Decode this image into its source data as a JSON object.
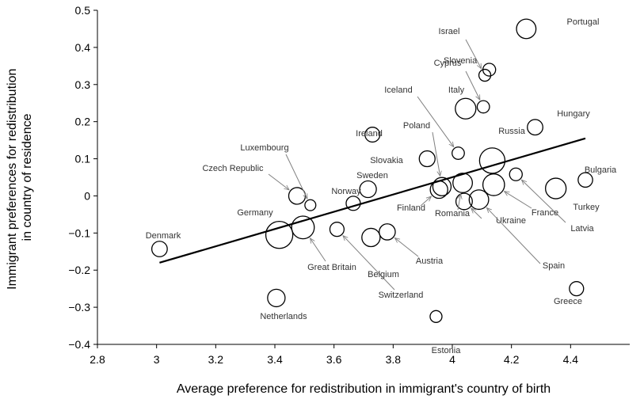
{
  "chart_data": {
    "type": "scatter",
    "title": "",
    "xlabel": "Average preference for redistribution in immigrant's country of birth",
    "ylabel": "Immigrant preferences for redistribution in country of residence",
    "ylabel_lines": [
      "Immigrant preferences for redistribution",
      "in country of residence"
    ],
    "xlim": [
      2.8,
      4.6
    ],
    "ylim": [
      -0.4,
      0.5
    ],
    "xticks": [
      "2.8",
      "3",
      "3.2",
      "3.4",
      "3.6",
      "3.8",
      "4",
      "4.2",
      "4.4"
    ],
    "yticks": [
      "−0.4",
      "−0.3",
      "−0.2",
      "−0.1",
      "0",
      "0.1",
      "0.2",
      "0.3",
      "0.4",
      "0.5"
    ],
    "grid": false,
    "legend": "none",
    "point_size_encodes": "relative sample size (bubble area)",
    "fit_line": {
      "x": [
        3.01,
        4.45
      ],
      "y": [
        -0.18,
        0.155
      ]
    },
    "points": [
      {
        "name": "Portugal",
        "x": 4.25,
        "y": 0.45,
        "size": 3.5
      },
      {
        "name": "Israel",
        "x": 4.11,
        "y": 0.325,
        "size": 1.0
      },
      {
        "name": "Slovenia",
        "x": 4.125,
        "y": 0.34,
        "size": 1.2
      },
      {
        "name": "Cyprus",
        "x": 4.105,
        "y": 0.24,
        "size": 1.1
      },
      {
        "name": "Italy",
        "x": 4.045,
        "y": 0.235,
        "size": 4.0
      },
      {
        "name": "Iceland",
        "x": 4.02,
        "y": 0.115,
        "size": 1.1
      },
      {
        "name": "Hungary",
        "x": 4.28,
        "y": 0.185,
        "size": 2.0
      },
      {
        "name": "Russia",
        "x": 4.135,
        "y": 0.095,
        "size": 6.5
      },
      {
        "name": "Ireland",
        "x": 3.73,
        "y": 0.165,
        "size": 1.8
      },
      {
        "name": "Poland",
        "x": 3.965,
        "y": 0.025,
        "size": 3.0
      },
      {
        "name": "Slovakia",
        "x": 3.915,
        "y": 0.1,
        "size": 2.1
      },
      {
        "name": "Luxembourg",
        "x": 3.52,
        "y": -0.025,
        "size": 0.8
      },
      {
        "name": "Czech Republic",
        "x": 3.475,
        "y": 0.0,
        "size": 2.4
      },
      {
        "name": "Sweden",
        "x": 3.715,
        "y": 0.018,
        "size": 2.4
      },
      {
        "name": "Norway",
        "x": 3.665,
        "y": -0.02,
        "size": 1.6
      },
      {
        "name": "Bulgaria",
        "x": 4.45,
        "y": 0.043,
        "size": 1.7
      },
      {
        "name": "Turkey",
        "x": 4.35,
        "y": 0.02,
        "size": 4.0
      },
      {
        "name": "Latvia",
        "x": 4.215,
        "y": 0.058,
        "size": 1.2
      },
      {
        "name": "France",
        "x": 4.14,
        "y": 0.03,
        "size": 4.5
      },
      {
        "name": "Finland",
        "x": 3.955,
        "y": 0.017,
        "size": 2.7
      },
      {
        "name": "Romania",
        "x": 4.035,
        "y": 0.035,
        "size": 3.5
      },
      {
        "name": "Ukraine",
        "x": 4.04,
        "y": -0.015,
        "size": 2.3
      },
      {
        "name": "Spain",
        "x": 4.09,
        "y": -0.01,
        "size": 3.5
      },
      {
        "name": "Germany",
        "x": 3.415,
        "y": -0.105,
        "size": 7.5
      },
      {
        "name": "Great Britain",
        "x": 3.495,
        "y": -0.085,
        "size": 5.0
      },
      {
        "name": "Switzerland",
        "x": 3.61,
        "y": -0.09,
        "size": 1.6
      },
      {
        "name": "Belgium",
        "x": 3.725,
        "y": -0.112,
        "size": 3.0
      },
      {
        "name": "Austria",
        "x": 3.78,
        "y": -0.097,
        "size": 2.2
      },
      {
        "name": "Denmark",
        "x": 3.01,
        "y": -0.143,
        "size": 2.0
      },
      {
        "name": "Netherlands",
        "x": 3.405,
        "y": -0.275,
        "size": 2.7
      },
      {
        "name": "Estonia",
        "x": 3.945,
        "y": -0.325,
        "size": 1.0
      },
      {
        "name": "Greece",
        "x": 4.42,
        "y": -0.25,
        "size": 1.6
      }
    ],
    "annotations": [
      {
        "label": "Portugal",
        "has_arrow": false
      },
      {
        "label": "Israel",
        "has_arrow": true,
        "target": "Israel"
      },
      {
        "label": "Slovenia",
        "has_arrow": false
      },
      {
        "label": "Cyprus",
        "has_arrow": true,
        "target": "Cyprus"
      },
      {
        "label": "Italy",
        "has_arrow": false
      },
      {
        "label": "Iceland",
        "has_arrow": true,
        "target": "Iceland"
      },
      {
        "label": "Hungary",
        "has_arrow": false
      },
      {
        "label": "Russia",
        "has_arrow": false
      },
      {
        "label": "Ireland",
        "has_arrow": false
      },
      {
        "label": "Poland",
        "has_arrow": true,
        "target": "Poland"
      },
      {
        "label": "Slovakia",
        "has_arrow": false
      },
      {
        "label": "Luxembourg",
        "has_arrow": true,
        "target": "Luxembourg"
      },
      {
        "label": "Czech Republic",
        "has_arrow": true,
        "target": "Czech Republic"
      },
      {
        "label": "Sweden",
        "has_arrow": false
      },
      {
        "label": "Norway",
        "has_arrow": false
      },
      {
        "label": "Bulgaria",
        "has_arrow": false
      },
      {
        "label": "Turkey",
        "has_arrow": false
      },
      {
        "label": "Latvia",
        "has_arrow": true,
        "target": "Latvia"
      },
      {
        "label": "France",
        "has_arrow": true,
        "target": "France"
      },
      {
        "label": "Finland",
        "has_arrow": true,
        "target": "Finland"
      },
      {
        "label": "Romania",
        "has_arrow": true,
        "target": "Romania"
      },
      {
        "label": "Ukraine",
        "has_arrow": true,
        "target": "Ukraine"
      },
      {
        "label": "Spain",
        "has_arrow": true,
        "target": "Spain"
      },
      {
        "label": "Germany",
        "has_arrow": false
      },
      {
        "label": "Great Britain",
        "has_arrow": true,
        "target": "Great Britain"
      },
      {
        "label": "Switzerland",
        "has_arrow": true,
        "target": "Switzerland"
      },
      {
        "label": "Belgium",
        "has_arrow": false
      },
      {
        "label": "Austria",
        "has_arrow": true,
        "target": "Austria"
      },
      {
        "label": "Denmark",
        "has_arrow": false
      },
      {
        "label": "Netherlands",
        "has_arrow": false
      },
      {
        "label": "Estonia",
        "has_arrow": false
      },
      {
        "label": "Greece",
        "has_arrow": false
      }
    ],
    "colors": {
      "ink": "#000000",
      "label": "#333333",
      "arrow": "#808080"
    }
  }
}
